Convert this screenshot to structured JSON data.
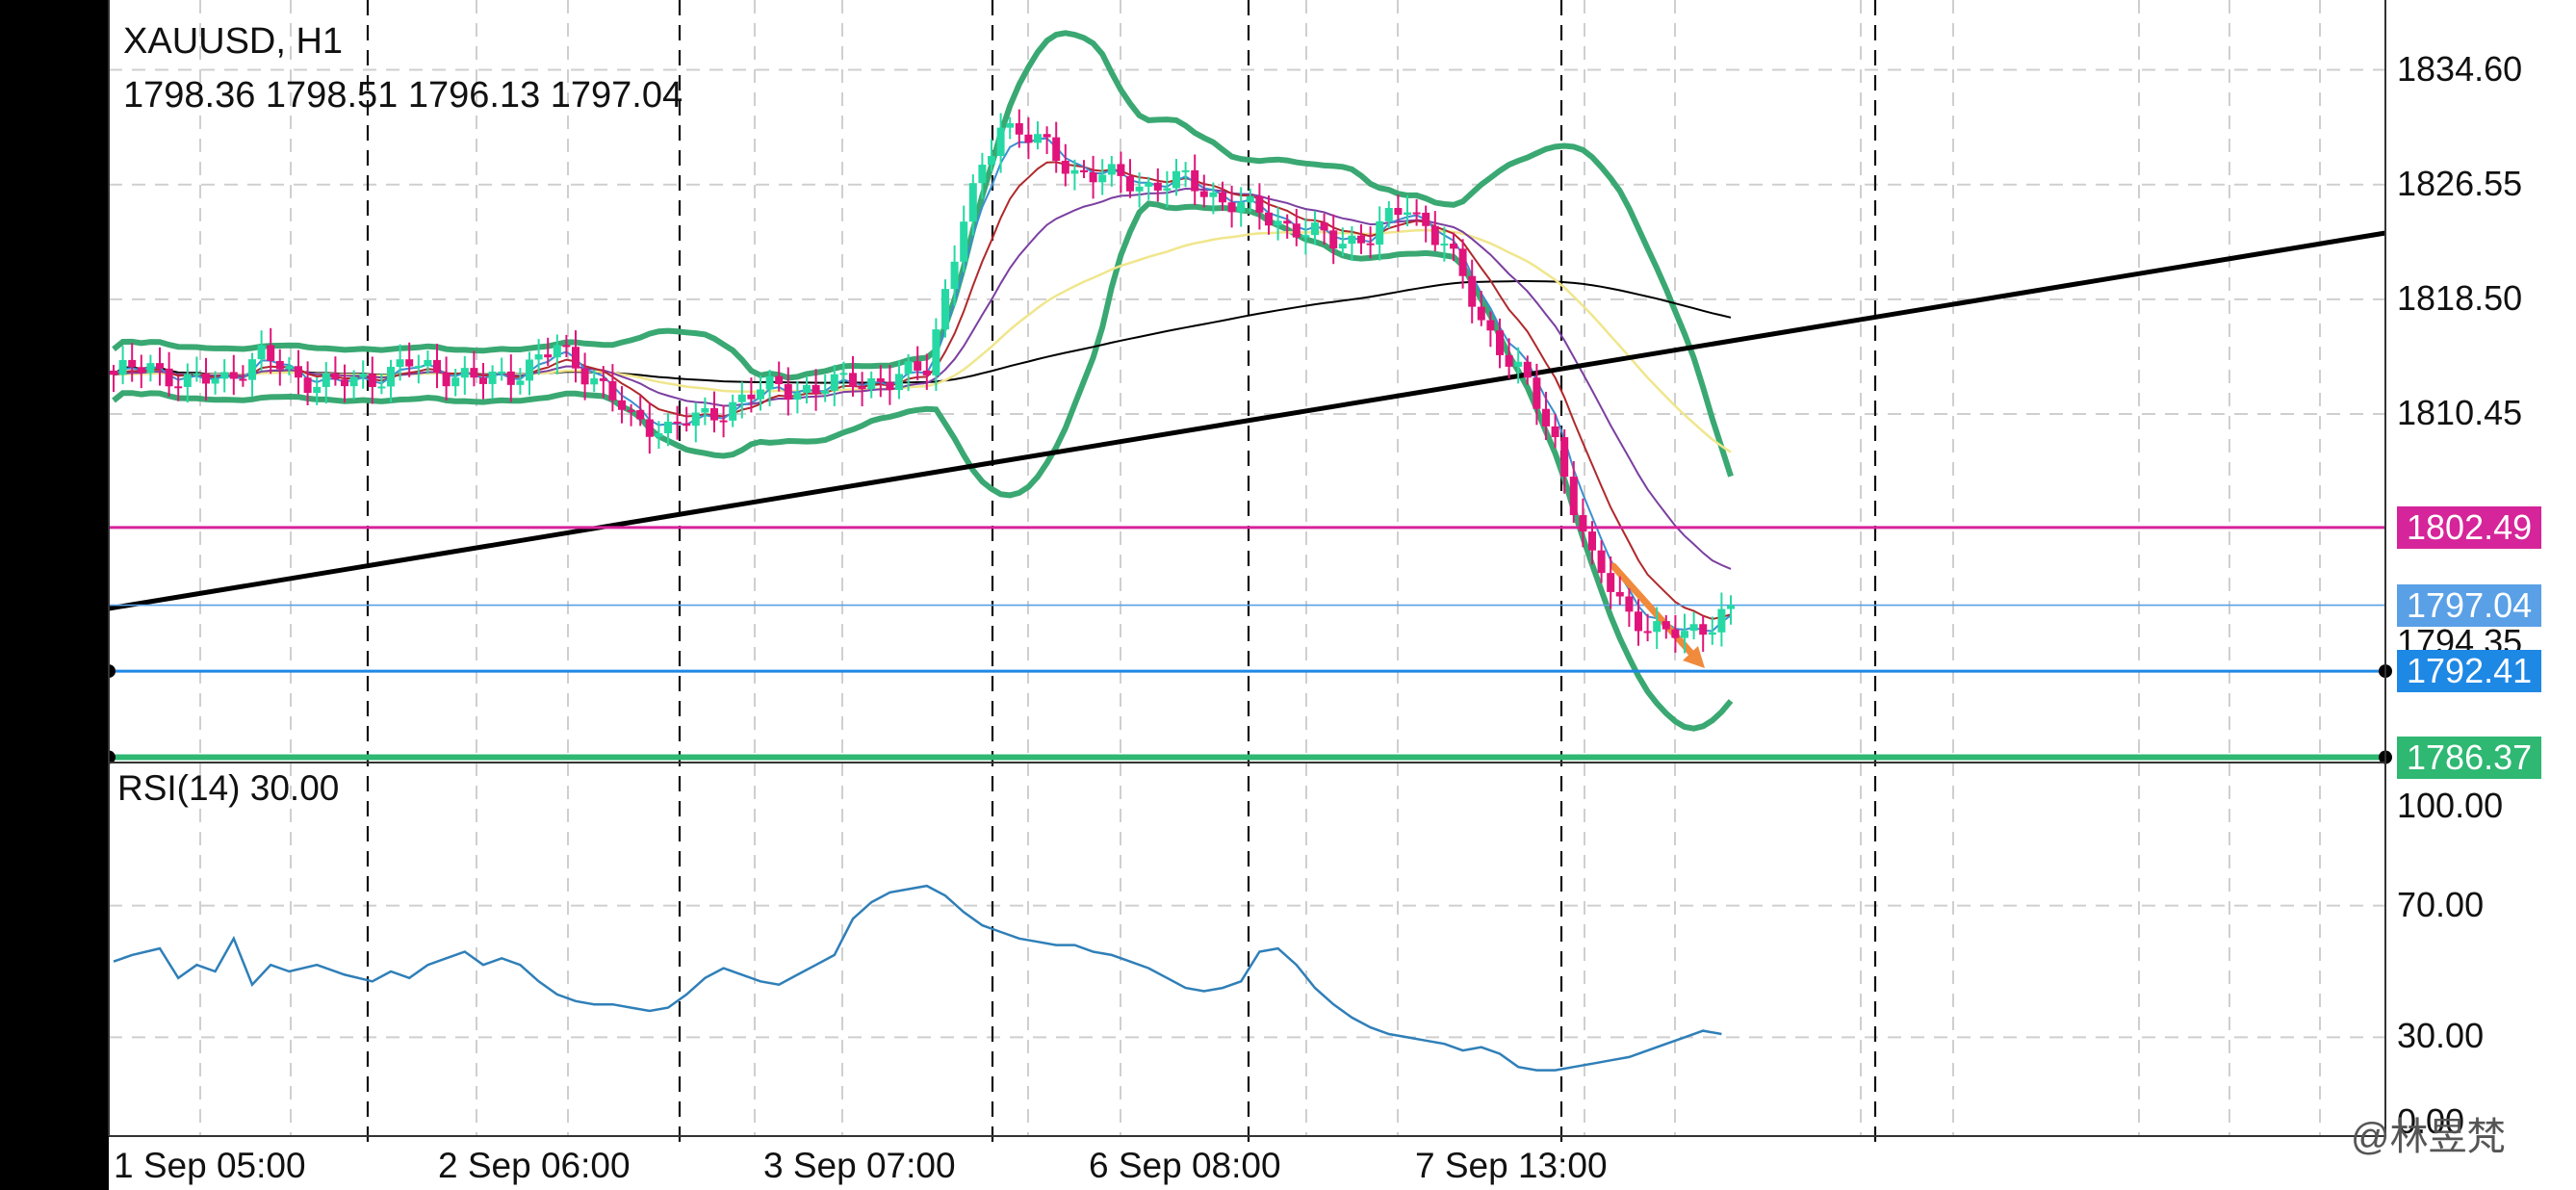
{
  "window": {
    "symbol_timeframe": "XAUUSD, H1",
    "ohlc": "1798.36 1798.51 1796.13 1797.04"
  },
  "watermark": "@林昱梵",
  "colors": {
    "bull": "#26d9a4",
    "bear": "#e0147a",
    "bollinger": "#3aa872",
    "trendline": "#000000",
    "resistance": "#d6249a",
    "support_blue": "#1e88e5",
    "support_green": "#2eb872",
    "current_price": "#5aa0e6",
    "arrow": "#f08a3c",
    "rsi_line": "#2f7fb8",
    "ma_fast": "#3b8fd0",
    "ma_mid": "#b0282b",
    "ma_slow": "#7b3fa0",
    "ma_yellow": "#f0e68c",
    "ma_black": "#000000"
  },
  "chart_data": [
    {
      "type": "candlestick",
      "title": "XAUUSD, H1",
      "subtitle": "1798.36 1798.51 1796.13 1797.04",
      "x_ticks": [
        "1 Sep 05:00",
        "2 Sep 06:00",
        "3 Sep 07:00",
        "6 Sep 08:00",
        "7 Sep 13:00"
      ],
      "y_ticks": [
        1834.6,
        1826.55,
        1818.5,
        1810.45
      ],
      "ylim": [
        1786.0,
        1839.5
      ],
      "grid": true,
      "close_path": [
        [
          0,
          1813.2
        ],
        [
          4,
          1813.8
        ],
        [
          8,
          1812.6
        ],
        [
          12,
          1813.0
        ],
        [
          16,
          1814.5
        ],
        [
          20,
          1813.0
        ],
        [
          24,
          1812.5
        ],
        [
          28,
          1813.0
        ],
        [
          32,
          1813.9
        ],
        [
          36,
          1813.4
        ],
        [
          40,
          1812.7
        ],
        [
          44,
          1813.5
        ],
        [
          48,
          1815.0
        ],
        [
          52,
          1813.0
        ],
        [
          56,
          1810.0
        ],
        [
          60,
          1809.5
        ],
        [
          64,
          1810.2
        ],
        [
          68,
          1811.5
        ],
        [
          72,
          1812.5
        ],
        [
          76,
          1812.0
        ],
        [
          80,
          1813.0
        ],
        [
          84,
          1812.5
        ],
        [
          88,
          1814.0
        ],
        [
          92,
          1824.0
        ],
        [
          96,
          1831.0
        ],
        [
          100,
          1829.5
        ],
        [
          104,
          1827.5
        ],
        [
          108,
          1827.0
        ],
        [
          112,
          1826.5
        ],
        [
          116,
          1826.8
        ],
        [
          120,
          1825.5
        ],
        [
          124,
          1824.5
        ],
        [
          128,
          1823.5
        ],
        [
          132,
          1822.5
        ],
        [
          136,
          1823.0
        ],
        [
          140,
          1825.0
        ],
        [
          144,
          1822.5
        ],
        [
          148,
          1817.0
        ],
        [
          152,
          1813.5
        ],
        [
          156,
          1808.5
        ],
        [
          160,
          1800.0
        ],
        [
          164,
          1796.5
        ],
        [
          168,
          1794.8
        ],
        [
          172,
          1795.5
        ],
        [
          175,
          1797.04
        ]
      ],
      "series": [
        {
          "name": "RSI(14)",
          "y_ticks": [
            100.0,
            70.0,
            30.0,
            0.0
          ],
          "ylim": [
            0,
            100
          ],
          "values": [
            [
              0,
              53
            ],
            [
              2,
              55
            ],
            [
              5,
              57
            ],
            [
              7,
              48
            ],
            [
              9,
              52
            ],
            [
              11,
              50
            ],
            [
              13,
              60
            ],
            [
              15,
              46
            ],
            [
              17,
              52
            ],
            [
              19,
              50
            ],
            [
              22,
              52
            ],
            [
              25,
              49
            ],
            [
              28,
              47
            ],
            [
              30,
              50
            ],
            [
              32,
              48
            ],
            [
              34,
              52
            ],
            [
              36,
              54
            ],
            [
              38,
              56
            ],
            [
              40,
              52
            ],
            [
              42,
              54
            ],
            [
              44,
              52
            ],
            [
              46,
              47
            ],
            [
              48,
              43
            ],
            [
              50,
              41
            ],
            [
              52,
              40
            ],
            [
              54,
              40
            ],
            [
              56,
              39
            ],
            [
              58,
              38
            ],
            [
              60,
              39
            ],
            [
              62,
              43
            ],
            [
              64,
              48
            ],
            [
              66,
              51
            ],
            [
              68,
              49
            ],
            [
              70,
              47
            ],
            [
              72,
              46
            ],
            [
              74,
              49
            ],
            [
              76,
              52
            ],
            [
              78,
              55
            ],
            [
              80,
              66
            ],
            [
              82,
              71
            ],
            [
              84,
              74
            ],
            [
              86,
              75
            ],
            [
              88,
              76
            ],
            [
              90,
              73
            ],
            [
              92,
              68
            ],
            [
              94,
              64
            ],
            [
              96,
              62
            ],
            [
              98,
              60
            ],
            [
              100,
              59
            ],
            [
              102,
              58
            ],
            [
              104,
              58
            ],
            [
              106,
              56
            ],
            [
              108,
              55
            ],
            [
              110,
              53
            ],
            [
              112,
              51
            ],
            [
              114,
              48
            ],
            [
              116,
              45
            ],
            [
              118,
              44
            ],
            [
              120,
              45
            ],
            [
              122,
              47
            ],
            [
              124,
              56
            ],
            [
              126,
              57
            ],
            [
              128,
              52
            ],
            [
              130,
              45
            ],
            [
              132,
              40
            ],
            [
              134,
              36
            ],
            [
              136,
              33
            ],
            [
              138,
              31
            ],
            [
              140,
              30
            ],
            [
              142,
              29
            ],
            [
              144,
              28
            ],
            [
              146,
              26
            ],
            [
              148,
              27
            ],
            [
              150,
              25
            ],
            [
              152,
              21
            ],
            [
              154,
              20
            ],
            [
              156,
              20
            ],
            [
              158,
              21
            ],
            [
              160,
              22
            ],
            [
              162,
              23
            ],
            [
              164,
              24
            ],
            [
              166,
              26
            ],
            [
              168,
              28
            ],
            [
              170,
              30
            ],
            [
              172,
              32
            ],
            [
              174,
              31
            ]
          ]
        }
      ],
      "levels": [
        {
          "name": "resistance",
          "value": 1802.49,
          "label": "1802.49"
        },
        {
          "name": "current",
          "value": 1797.04,
          "label": "1797.04"
        },
        {
          "name": "hidden_tick",
          "value": 1794.35,
          "label": "1794.35"
        },
        {
          "name": "support_blue",
          "value": 1792.41,
          "label": "1792.41"
        },
        {
          "name": "support_green",
          "value": 1786.37,
          "label": "1786.37"
        }
      ],
      "rsi_title": "RSI(14) 30.00",
      "rsi_ticks_labels": [
        "100.00",
        "70.00",
        "30.00",
        "0.00"
      ]
    }
  ]
}
